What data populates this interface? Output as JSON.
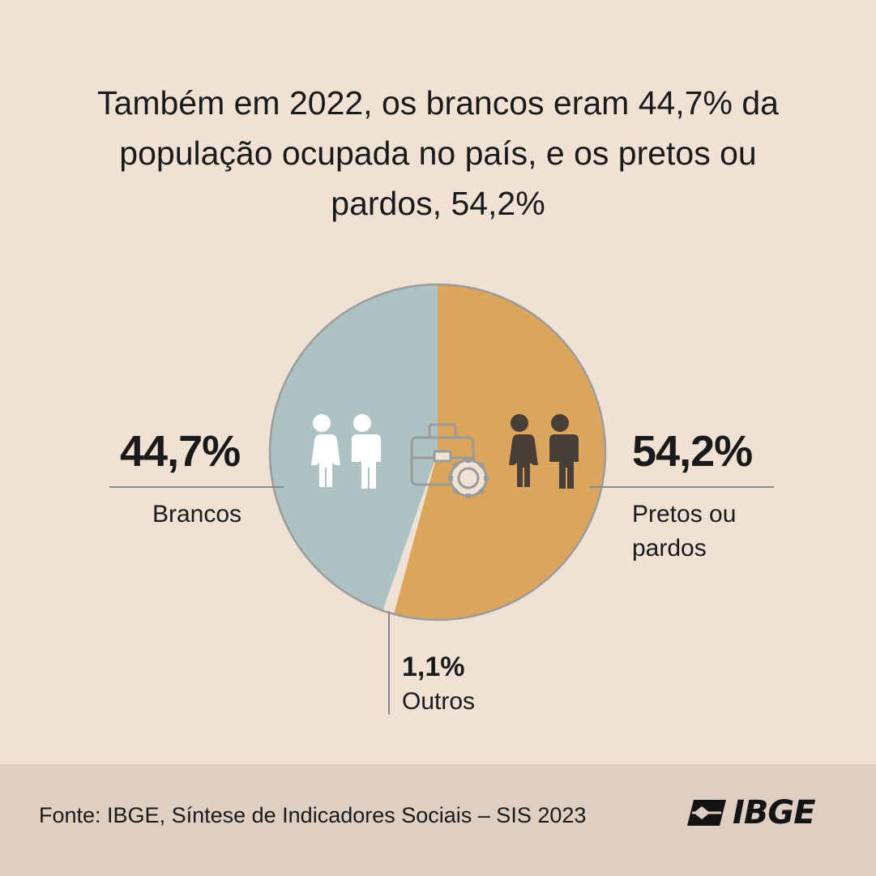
{
  "title": "Também em 2022, os brancos eram 44,7% da população ocupada no país, e os pretos ou pardos, 54,2%",
  "chart_data": {
    "type": "pie",
    "slices": [
      {
        "label": "Pretos ou pardos",
        "value": 54.2,
        "value_label": "54,2%",
        "color": "#dba55c"
      },
      {
        "label": "Outros",
        "value": 1.1,
        "value_label": "1,1%",
        "color": "#efe2d5"
      },
      {
        "label": "Brancos",
        "value": 44.7,
        "value_label": "44,7%",
        "color": "#adc2c2"
      }
    ]
  },
  "labels": {
    "brancos_pct": "44,7%",
    "brancos": "Brancos",
    "pretos_pct": "54,2%",
    "pretos_line1": "Pretos ou",
    "pretos_line2": "pardos",
    "outros_pct": "1,1%",
    "outros": "Outros"
  },
  "icons": [
    "people-white-icon",
    "briefcase-gear-icon",
    "people-dark-icon"
  ],
  "footer": {
    "source": "Fonte: IBGE, Síntese de Indicadores Sociais – SIS 2023",
    "logo_text": "IBGE"
  }
}
